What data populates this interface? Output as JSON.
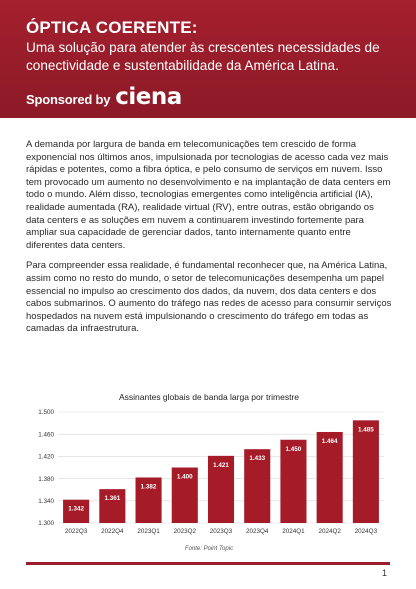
{
  "banner": {
    "title": "ÓPTICA COERENTE:",
    "subtitle_line1": "Uma solução para atender às crescentes necessidades de",
    "subtitle_line2": "conectividade e sustentabilidade da América Latina.",
    "sponsored_by": "Sponsored by",
    "sponsor_logo": "ciena"
  },
  "article": {
    "paragraph1": "A demanda por largura de banda em telecomunicações tem crescido de forma exponencial nos últimos anos, impulsionada por tecnologias de acesso cada vez mais rápidas e potentes, como a fibra óptica, e pelo consumo de serviços em nuvem. Isso tem provocado um aumento no desenvolvimento e na implantação de data centers em todo o mundo. Além disso, tecnologias emergentes como inteligência artificial (IA), realidade aumentada (RA), realidade virtual (RV), entre outras, estão obrigando os data centers e as soluções em nuvem a continuarem investindo fortemente para ampliar sua capacidade de gerenciar dados, tanto internamente quanto entre diferentes data centers.",
    "paragraph2": "Para compreender essa realidade, é fundamental reconhecer que, na América Latina, assim como no resto do mundo, o setor de telecomunicações desempenha um papel essencial no impulso ao crescimento dos dados, da nuvem, dos data centers e dos cabos submarinos. O aumento do tráfego nas redes de acesso para consumir serviços hospedados na nuvem está impulsionando o crescimento do tráfego em todas as camadas da infraestrutura."
  },
  "chart_data": {
    "type": "bar",
    "title": "Assinantes globais de banda larga por trimestre",
    "categories": [
      "2022Q3",
      "2022Q4",
      "2023Q1",
      "2023Q2",
      "2023Q3",
      "2023Q4",
      "2024Q1",
      "2024Q2",
      "2024Q3"
    ],
    "values": [
      1.342,
      1.361,
      1.382,
      1.4,
      1.421,
      1.433,
      1.45,
      1.464,
      1.485
    ],
    "value_labels": [
      "1.342",
      "1.361",
      "1.382",
      "1.400",
      "1.421",
      "1.433",
      "1.450",
      "1.464",
      "1.485"
    ],
    "ylim": [
      1.3,
      1.5
    ],
    "yticks": [
      1.3,
      1.34,
      1.38,
      1.42,
      1.46,
      1.5
    ],
    "ytick_labels": [
      "1.300",
      "1.340",
      "1.380",
      "1.420",
      "1.460",
      "1.500"
    ],
    "grid": true,
    "xlabel": "",
    "ylabel": "",
    "source": "Fonte: Point Topic",
    "bar_color": "#a51c28",
    "label_color": "#ffffff"
  },
  "footer": {
    "page_number": "1",
    "accent_color": "#9b1c2a"
  }
}
